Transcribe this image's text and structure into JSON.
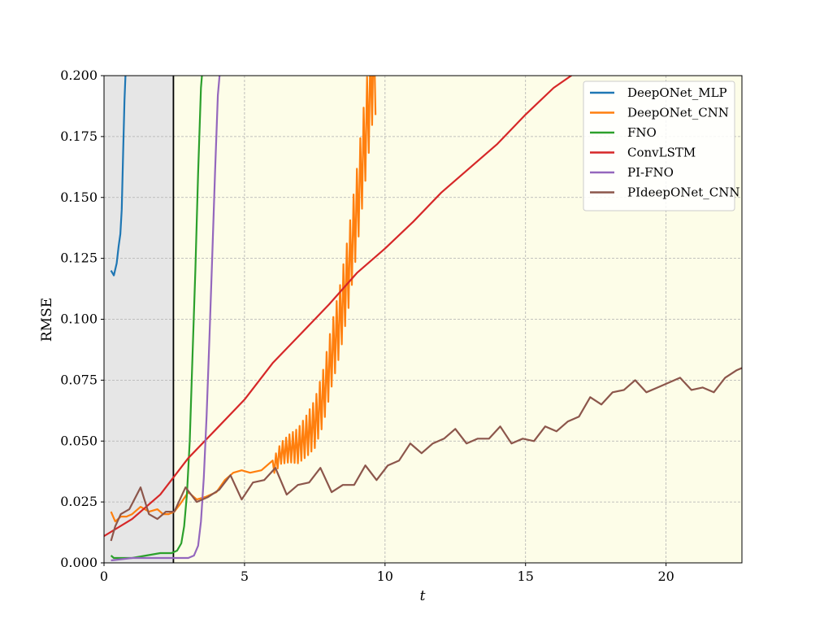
{
  "chart_data": {
    "type": "line",
    "xlabel": "t",
    "ylabel": "RMSE",
    "xlim": [
      0,
      22.7
    ],
    "ylim": [
      0,
      0.2
    ],
    "x_ticks": [
      "0",
      "5",
      "10",
      "15",
      "20"
    ],
    "y_ticks": [
      "0.000",
      "0.025",
      "0.050",
      "0.075",
      "0.100",
      "0.125",
      "0.150",
      "0.175",
      "0.200"
    ],
    "grid": true,
    "legend_position": "top-right",
    "shaded_regions": [
      {
        "x0": 0,
        "x1": 2.47,
        "color": "#e6e6e6"
      },
      {
        "x0": 2.47,
        "x1": 22.7,
        "color": "#fdfde8"
      }
    ],
    "vertical_line": {
      "x": 2.47,
      "color": "#000000"
    },
    "series": [
      {
        "name": "DeepONet_MLP",
        "color": "#1f77b4",
        "x": [
          0.25,
          0.35,
          0.45,
          0.52,
          0.58,
          0.63,
          0.68,
          0.73,
          0.78
        ],
        "y": [
          0.12,
          0.118,
          0.123,
          0.13,
          0.135,
          0.145,
          0.168,
          0.19,
          0.205
        ]
      },
      {
        "name": "DeepONet_CNN",
        "color": "#ff7f0e",
        "x": [
          0.25,
          0.4,
          0.6,
          0.8,
          1.0,
          1.3,
          1.6,
          1.9,
          2.1,
          2.3,
          2.5,
          2.7,
          3.0,
          3.3,
          3.6,
          4.0,
          4.3,
          4.6,
          4.9,
          5.2,
          5.6,
          6.0,
          6.3,
          6.6,
          6.9,
          7.2,
          7.5,
          7.8,
          8.1,
          8.4,
          8.7,
          9.0,
          9.2,
          9.4,
          9.55,
          9.7
        ],
        "y": [
          0.021,
          0.017,
          0.019,
          0.019,
          0.02,
          0.023,
          0.021,
          0.022,
          0.02,
          0.02,
          0.021,
          0.024,
          0.029,
          0.026,
          0.027,
          0.029,
          0.034,
          0.037,
          0.038,
          0.037,
          0.038,
          0.039,
          0.045,
          0.047,
          0.048,
          0.052,
          0.057,
          0.068,
          0.085,
          0.1,
          0.12,
          0.145,
          0.165,
          0.185,
          0.2,
          0.205
        ],
        "oscillation": [
          {
            "x0": 6.0,
            "x1": 9.7,
            "amp_start": 0.003,
            "amp_end": 0.02,
            "period": 0.12
          }
        ]
      },
      {
        "name": "FNO",
        "color": "#2ca02c",
        "x": [
          0.25,
          0.35,
          0.6,
          1.0,
          1.5,
          2.0,
          2.4,
          2.6,
          2.75,
          2.85,
          2.95,
          3.05,
          3.15,
          3.25,
          3.35,
          3.45,
          3.52
        ],
        "y": [
          0.003,
          0.002,
          0.002,
          0.002,
          0.003,
          0.004,
          0.004,
          0.005,
          0.008,
          0.015,
          0.028,
          0.05,
          0.085,
          0.12,
          0.16,
          0.195,
          0.205
        ]
      },
      {
        "name": "ConvLSTM",
        "color": "#d62728",
        "x": [
          0,
          1,
          2,
          3,
          4,
          5,
          6,
          7,
          8,
          9,
          10,
          11,
          12,
          13,
          14,
          15,
          16,
          17,
          17.6
        ],
        "y": [
          0.011,
          0.018,
          0.028,
          0.043,
          0.055,
          0.067,
          0.082,
          0.094,
          0.106,
          0.119,
          0.129,
          0.14,
          0.152,
          0.162,
          0.172,
          0.184,
          0.195,
          0.203,
          0.207
        ]
      },
      {
        "name": "PI-FNO",
        "color": "#9467bd",
        "x": [
          0.25,
          1.0,
          2.0,
          3.0,
          3.2,
          3.35,
          3.45,
          3.55,
          3.65,
          3.75,
          3.85,
          3.95,
          4.05,
          4.15
        ],
        "y": [
          0.001,
          0.002,
          0.002,
          0.002,
          0.003,
          0.007,
          0.017,
          0.035,
          0.06,
          0.092,
          0.125,
          0.16,
          0.192,
          0.205
        ]
      },
      {
        "name": "PIdeepONet_CNN",
        "color": "#8c564b",
        "x": [
          0.25,
          0.4,
          0.6,
          0.9,
          1.3,
          1.6,
          1.9,
          2.2,
          2.5,
          2.9,
          3.3,
          3.7,
          4.1,
          4.5,
          4.9,
          5.3,
          5.7,
          6.1,
          6.5,
          6.9,
          7.3,
          7.7,
          8.1,
          8.5,
          8.9,
          9.3,
          9.7,
          10.1,
          10.5,
          10.9,
          11.3,
          11.7,
          12.1,
          12.5,
          12.9,
          13.3,
          13.7,
          14.1,
          14.5,
          14.9,
          15.3,
          15.7,
          16.1,
          16.5,
          16.9,
          17.3,
          17.7,
          18.1,
          18.5,
          18.9,
          19.3,
          19.7,
          20.1,
          20.5,
          20.9,
          21.3,
          21.7,
          22.1,
          22.5,
          22.7
        ],
        "y": [
          0.009,
          0.015,
          0.02,
          0.022,
          0.031,
          0.02,
          0.018,
          0.021,
          0.021,
          0.031,
          0.025,
          0.027,
          0.03,
          0.036,
          0.026,
          0.033,
          0.034,
          0.039,
          0.028,
          0.032,
          0.033,
          0.039,
          0.029,
          0.032,
          0.032,
          0.04,
          0.034,
          0.04,
          0.042,
          0.049,
          0.045,
          0.049,
          0.051,
          0.055,
          0.049,
          0.051,
          0.051,
          0.056,
          0.049,
          0.051,
          0.05,
          0.056,
          0.054,
          0.058,
          0.06,
          0.068,
          0.065,
          0.07,
          0.071,
          0.075,
          0.07,
          0.072,
          0.074,
          0.076,
          0.071,
          0.072,
          0.07,
          0.076,
          0.079,
          0.08
        ]
      }
    ]
  }
}
